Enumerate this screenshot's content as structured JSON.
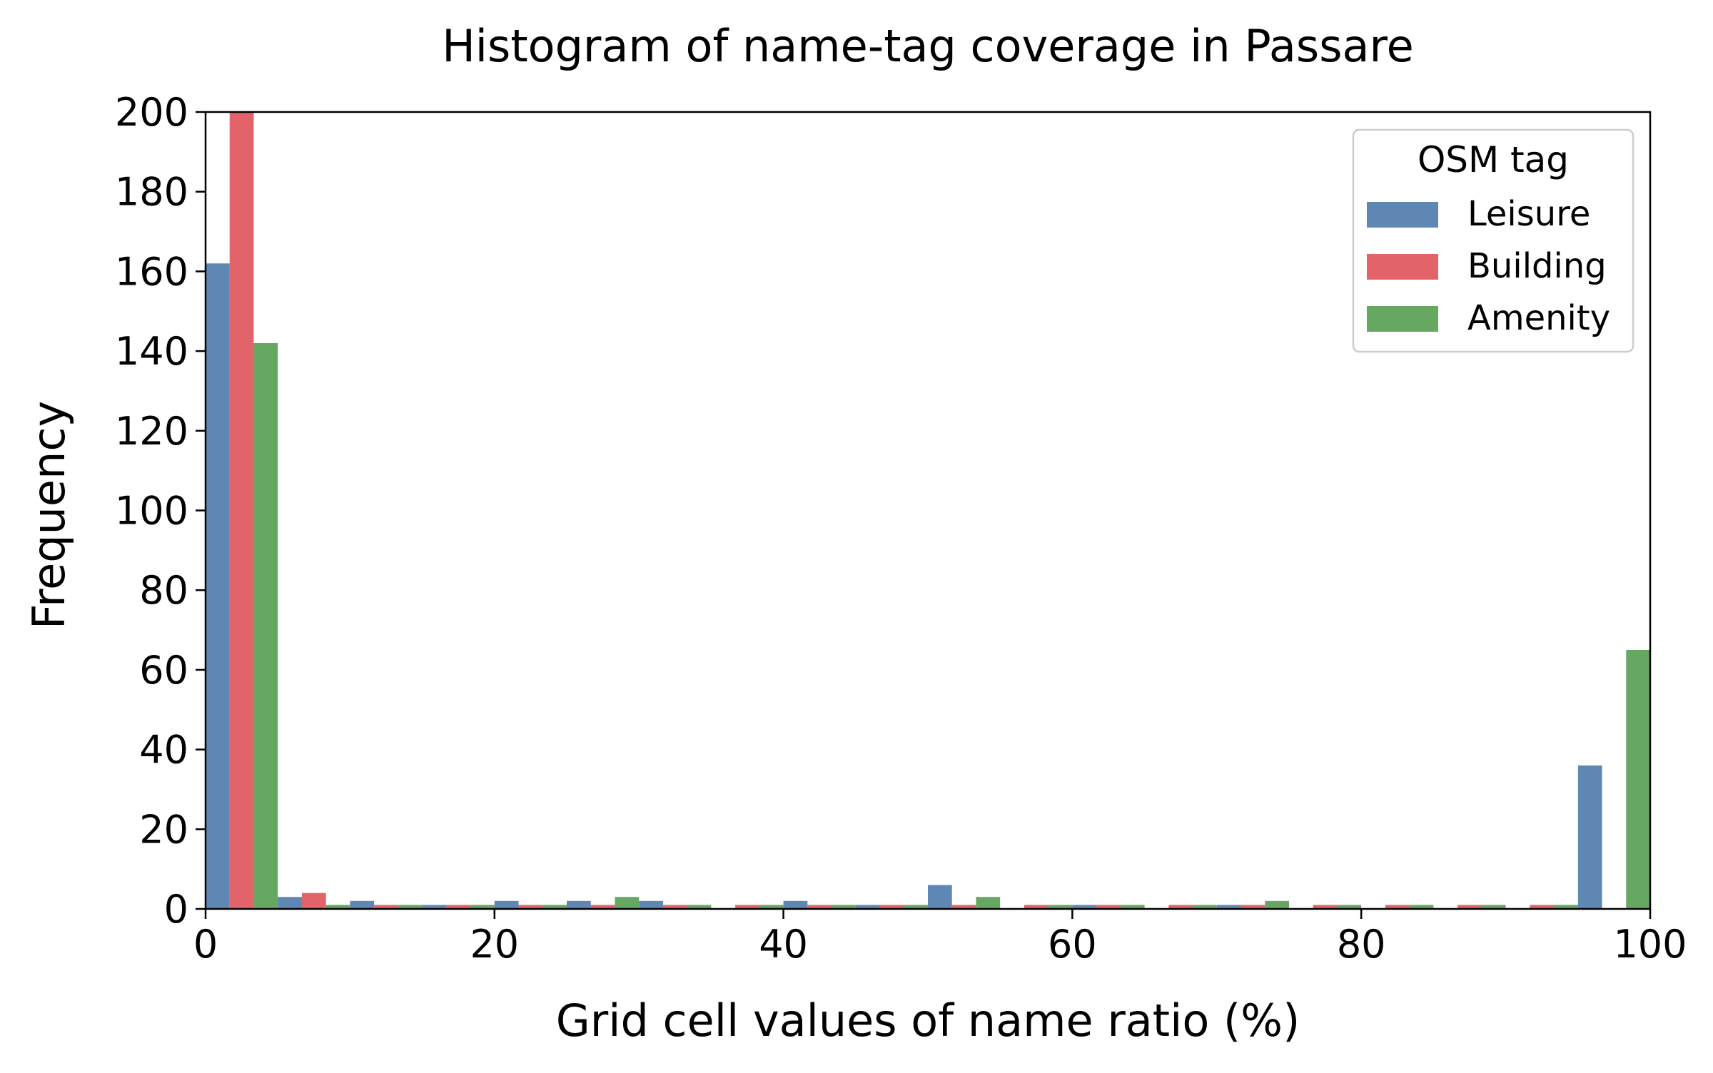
{
  "chart_data": {
    "type": "bar",
    "subtype": "grouped-histogram",
    "title": "Histogram of name-tag coverage in Passare",
    "xlabel": "Grid cell values of name ratio (%)",
    "ylabel": "Frequency",
    "xlim": [
      0,
      100
    ],
    "ylim": [
      0,
      200
    ],
    "x_ticks": [
      0,
      20,
      40,
      60,
      80,
      100
    ],
    "y_ticks": [
      0,
      20,
      40,
      60,
      80,
      100,
      120,
      140,
      160,
      180,
      200
    ],
    "grid": false,
    "legend": {
      "title": "OSM tag",
      "placement": "top-right"
    },
    "bin_width": 5,
    "bin_edges": [
      0,
      5,
      10,
      15,
      20,
      25,
      30,
      35,
      40,
      45,
      50,
      55,
      60,
      65,
      70,
      75,
      80,
      85,
      90,
      95,
      100
    ],
    "series": [
      {
        "name": "Leisure",
        "color": "#5f87b4",
        "values": [
          162,
          3,
          2,
          1,
          2,
          2,
          2,
          0,
          2,
          1,
          6,
          0,
          1,
          0,
          1,
          0,
          0,
          0,
          0,
          36
        ]
      },
      {
        "name": "Building",
        "color": "#e2646a",
        "values": [
          200,
          4,
          1,
          1,
          1,
          1,
          1,
          1,
          1,
          1,
          1,
          1,
          1,
          1,
          1,
          1,
          1,
          1,
          1,
          0
        ]
      },
      {
        "name": "Amenity",
        "color": "#66a861",
        "values": [
          142,
          1,
          1,
          1,
          1,
          3,
          1,
          1,
          1,
          1,
          3,
          1,
          1,
          1,
          2,
          1,
          1,
          1,
          1,
          65
        ]
      }
    ]
  }
}
